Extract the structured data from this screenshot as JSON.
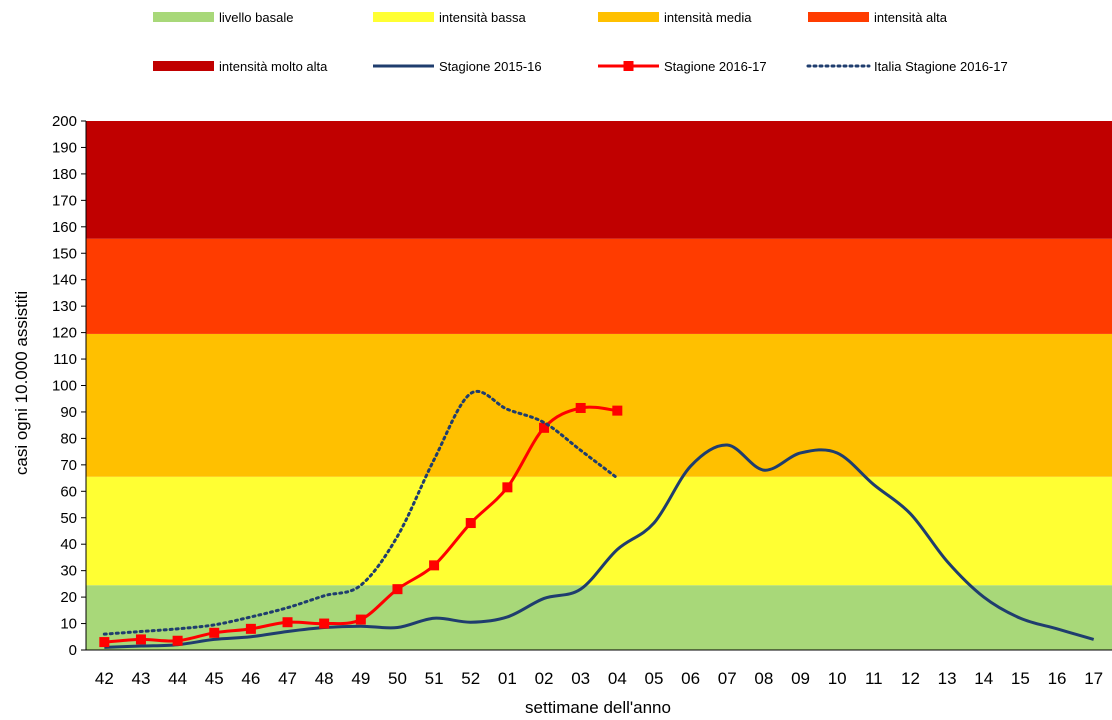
{
  "chart_data": {
    "type": "line",
    "xlabel": "settimane dell'anno",
    "ylabel": "casi ogni 10.000 assistiti",
    "ylim": [
      0,
      200
    ],
    "yticks": [
      0,
      10,
      20,
      30,
      40,
      50,
      60,
      70,
      80,
      90,
      100,
      110,
      120,
      130,
      140,
      150,
      160,
      170,
      180,
      190,
      200
    ],
    "categories": [
      "42",
      "43",
      "44",
      "45",
      "46",
      "47",
      "48",
      "49",
      "50",
      "51",
      "52",
      "01",
      "02",
      "03",
      "04",
      "05",
      "06",
      "07",
      "08",
      "09",
      "10",
      "11",
      "12",
      "13",
      "14",
      "15",
      "16",
      "17"
    ],
    "legend_placement": "top",
    "grid": false,
    "bands": [
      {
        "name": "livello basale",
        "from": 0,
        "to": 24.5,
        "color": "#a8d879"
      },
      {
        "name": "intensità bassa",
        "from": 24.5,
        "to": 65.5,
        "color": "#ffff33"
      },
      {
        "name": "intensità media",
        "from": 65.5,
        "to": 119.5,
        "color": "#ffc000"
      },
      {
        "name": "intensità alta",
        "from": 119.5,
        "to": 155.5,
        "color": "#ff3c00"
      },
      {
        "name": "intensità molto alta",
        "from": 155.5,
        "to": 200,
        "color": "#c00000"
      }
    ],
    "series": [
      {
        "name": "Stagione 2015-16",
        "color": "#1f3d6e",
        "style": "solid",
        "values": [
          1,
          1.5,
          2,
          4,
          5,
          7,
          8.5,
          9,
          8.5,
          12,
          10.5,
          12.5,
          19.5,
          23,
          38,
          48,
          69.5,
          77.5,
          68,
          74.5,
          74.5,
          62.5,
          51.5,
          33.5,
          20,
          12,
          8,
          4
        ]
      },
      {
        "name": "Stagione 2016-17",
        "color": "#ff0000",
        "style": "solid-markers",
        "values": [
          3,
          4,
          3.5,
          6.5,
          8,
          10.5,
          10,
          11.5,
          23,
          32,
          48,
          61.5,
          84,
          91.5,
          90.5,
          null,
          null,
          null,
          null,
          null,
          null,
          null,
          null,
          null,
          null,
          null,
          null,
          null
        ]
      },
      {
        "name": "Italia Stagione 2016-17",
        "color": "#1f3d6e",
        "style": "dotted",
        "values": [
          6,
          7,
          8,
          9.5,
          12.5,
          16,
          20.5,
          24.5,
          43,
          72,
          97,
          91,
          86,
          75.5,
          65,
          null,
          null,
          null,
          null,
          null,
          null,
          null,
          null,
          null,
          null,
          null,
          null,
          null
        ]
      }
    ]
  }
}
